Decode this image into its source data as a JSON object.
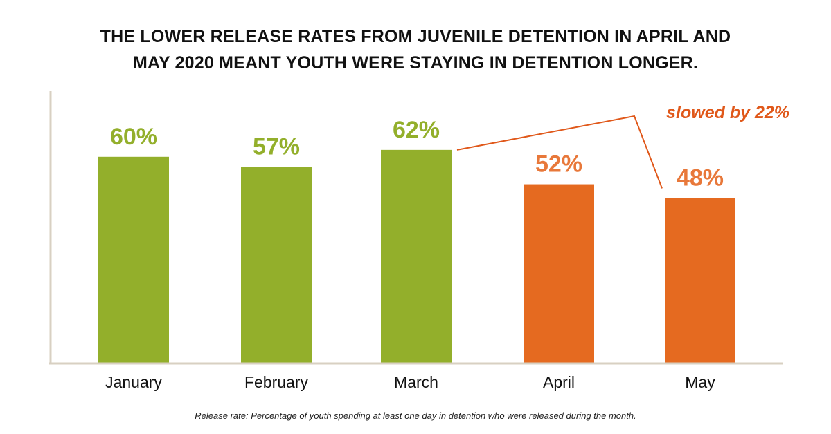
{
  "chart_data": {
    "type": "bar",
    "title_lines": [
      "THE LOWER RELEASE RATES FROM JUVENILE DETENTION IN APRIL AND",
      "MAY 2020 MEANT YOUTH WERE STAYING IN DETENTION LONGER."
    ],
    "categories": [
      "January",
      "February",
      "March",
      "April",
      "May"
    ],
    "values": [
      60,
      57,
      62,
      52,
      48
    ],
    "data_labels": [
      "60%",
      "57%",
      "62%",
      "52%",
      "48%"
    ],
    "bar_colors": [
      "#93af2b",
      "#93af2b",
      "#93af2b",
      "#e56a20",
      "#e56a20"
    ],
    "label_colors": [
      "#93af2b",
      "#93af2b",
      "#93af2b",
      "#e8783a",
      "#e8783a"
    ],
    "ylim": [
      0,
      100
    ],
    "grid": false,
    "xlabel": "",
    "ylabel": "",
    "annotation": {
      "text": "slowed by 22%",
      "color": "#e0581a"
    },
    "axis_color": "#d8d0c2",
    "footnote": "Release rate: Percentage of youth spending at least one day in detention who were released during the month."
  }
}
